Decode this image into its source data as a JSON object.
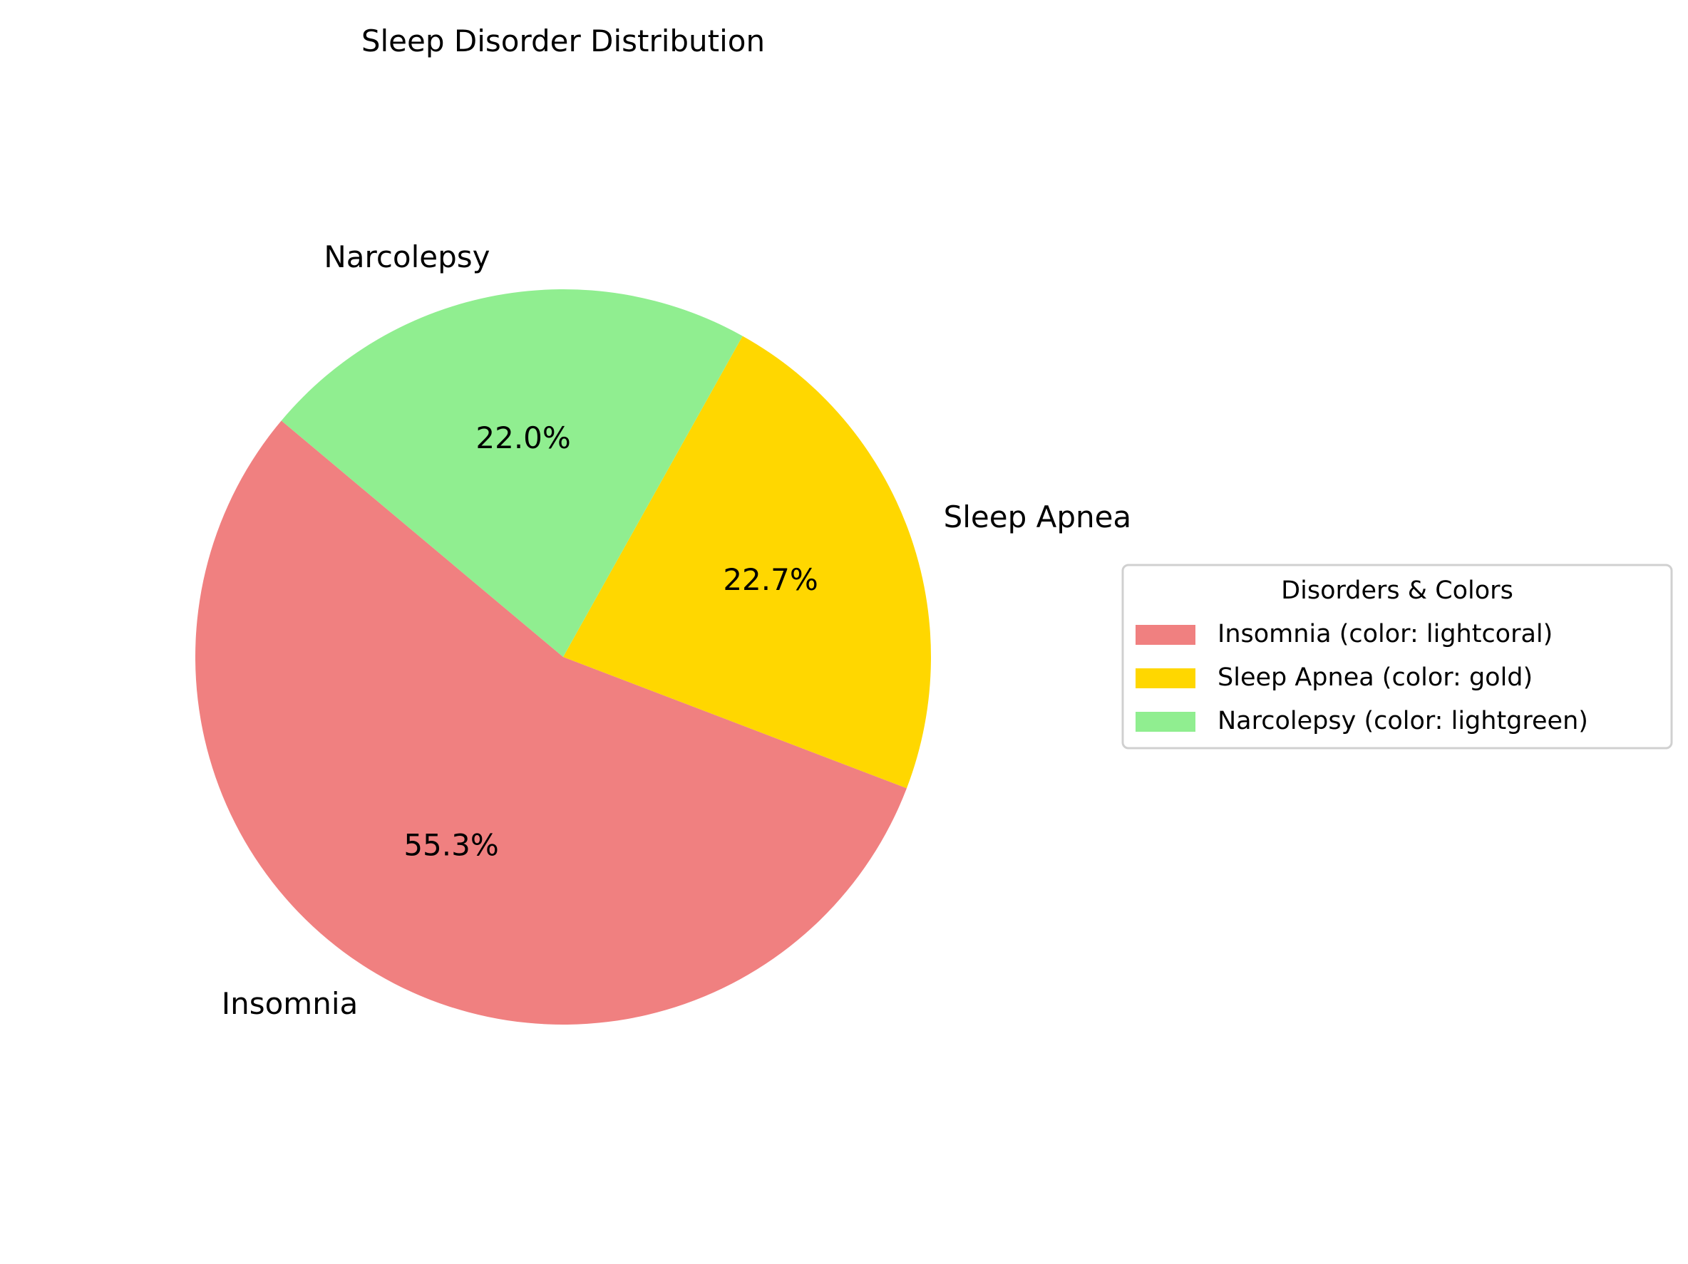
{
  "chart_data": {
    "type": "pie",
    "title": "Sleep Disorder Distribution",
    "labels": [
      "Insomnia",
      "Sleep Apnea",
      "Narcolepsy"
    ],
    "values": [
      55.3,
      22.7,
      22.0
    ],
    "pct_labels": [
      "55.3%",
      "22.7%",
      "22.0%"
    ],
    "colors": [
      "#f08080",
      "#ffd700",
      "#90ee90"
    ],
    "start_angle_deg": 140,
    "direction": "counterclockwise",
    "legend": {
      "title": "Disorders & Colors",
      "placement": "center-right",
      "entries": [
        "Insomnia (color: lightcoral)",
        "Sleep Apnea (color: gold)",
        "Narcolepsy (color: lightgreen)"
      ]
    }
  }
}
